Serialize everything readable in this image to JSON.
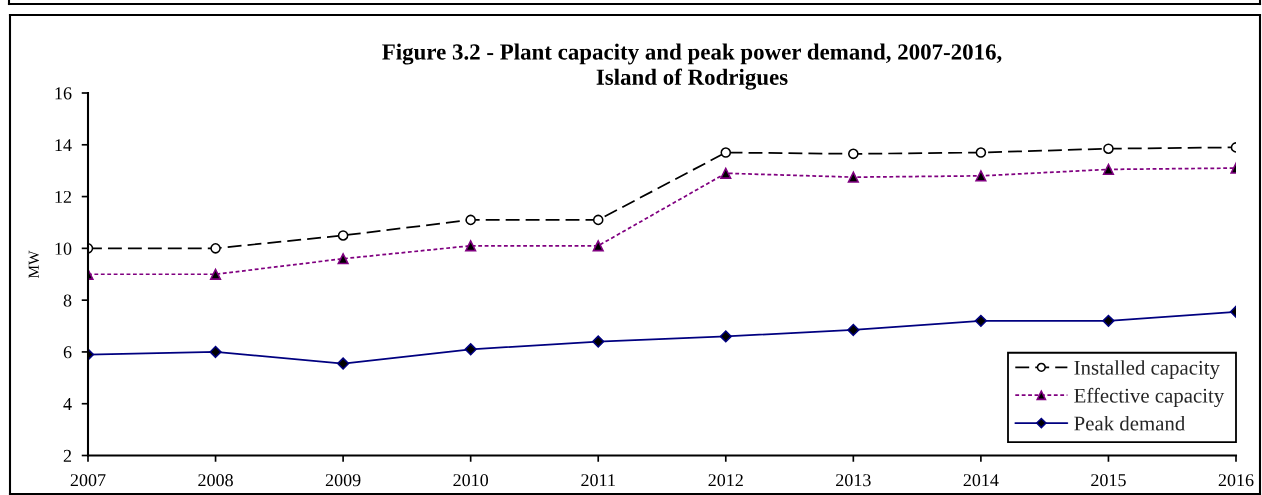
{
  "chart_data": {
    "type": "line",
    "title": "Figure 3.2 - Plant capacity and peak power demand, 2007-2016,\nIsland of Rodrigues",
    "ylabel": "MW",
    "x": [
      2007,
      2008,
      2009,
      2010,
      2011,
      2012,
      2013,
      2014,
      2015,
      2016
    ],
    "xlim": [
      2007,
      2016
    ],
    "xticks": [
      2007,
      2008,
      2009,
      2010,
      2011,
      2012,
      2013,
      2014,
      2015,
      2016
    ],
    "ylim": [
      2,
      16
    ],
    "yticks": [
      2,
      4,
      6,
      8,
      10,
      12,
      14,
      16
    ],
    "grid": false,
    "legend": "bottom right",
    "series": [
      {
        "name": "Installed capacity",
        "color": "#000000",
        "marker": "circle",
        "line_style": "dashed",
        "values": [
          10.0,
          10.0,
          10.5,
          11.1,
          11.1,
          13.7,
          13.65,
          13.7,
          13.85,
          13.9
        ]
      },
      {
        "name": "Effective capacity",
        "color": "#800080",
        "marker": "triangle",
        "line_style": "dotted",
        "values": [
          9.0,
          9.0,
          9.6,
          10.1,
          10.1,
          12.9,
          12.75,
          12.8,
          13.05,
          13.1
        ]
      },
      {
        "name": "Peak demand",
        "color": "#000080",
        "marker": "diamond",
        "line_style": "solid",
        "values": [
          5.9,
          6.0,
          5.55,
          6.1,
          6.4,
          6.6,
          6.85,
          7.2,
          7.2,
          7.55
        ]
      }
    ]
  }
}
